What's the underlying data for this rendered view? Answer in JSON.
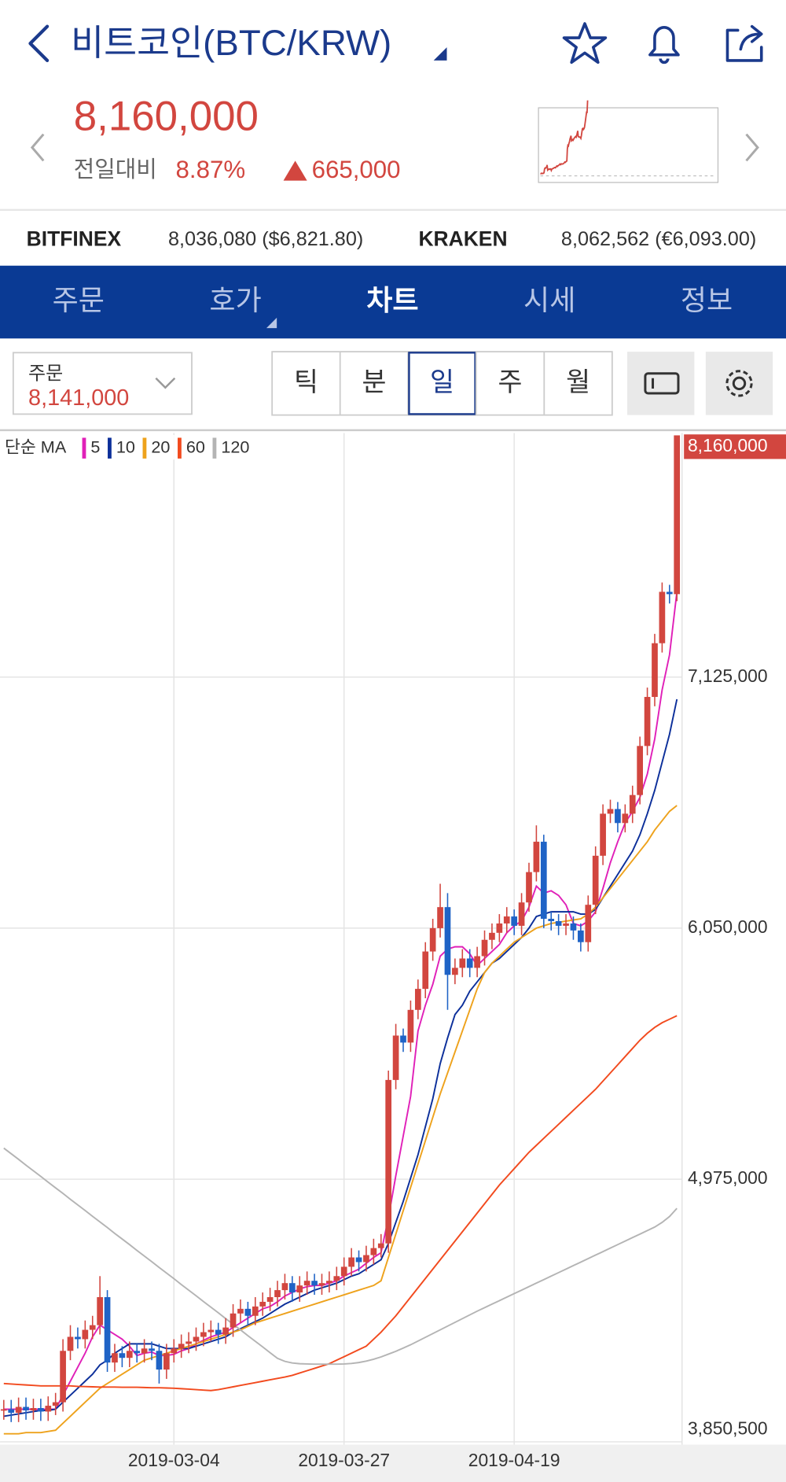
{
  "header": {
    "title": "비트코인(BTC/KRW)",
    "price": "8,160,000",
    "change_label": "전일대비",
    "change_rate": "8.87%",
    "change_amount": "665,000"
  },
  "exchanges": [
    {
      "name": "BITFINEX",
      "quote": "8,036,080 ($6,821.80)"
    },
    {
      "name": "KRAKEN",
      "quote": "8,062,562 (€6,093.00)"
    }
  ],
  "tabs": [
    "주문",
    "호가",
    "차트",
    "시세",
    "정보"
  ],
  "active_tab": 2,
  "order": {
    "label": "주문",
    "price": "8,141,000"
  },
  "periods": [
    "틱",
    "분",
    "일",
    "주",
    "월"
  ],
  "active_period": 2,
  "chart_data": {
    "type": "candlestick",
    "categories": [
      null,
      null,
      null,
      null,
      null,
      null,
      null,
      null,
      null,
      null,
      null,
      null,
      null,
      null,
      null,
      null,
      null,
      null,
      null,
      null,
      null,
      null,
      null,
      "2019-03-04",
      null,
      null,
      null,
      null,
      null,
      null,
      null,
      null,
      null,
      null,
      null,
      null,
      null,
      null,
      null,
      null,
      null,
      null,
      null,
      null,
      null,
      null,
      "2019-03-27",
      null,
      null,
      null,
      null,
      null,
      null,
      null,
      null,
      null,
      null,
      null,
      null,
      null,
      null,
      null,
      null,
      null,
      null,
      null,
      null,
      null,
      null,
      "2019-04-19",
      null,
      null,
      null,
      null,
      null,
      null,
      null,
      null,
      null,
      null,
      null,
      null,
      null,
      null,
      null,
      null,
      null,
      null,
      null,
      null,
      null,
      null
    ],
    "open": [
      3985000,
      3990000,
      3975000,
      4000000,
      3985000,
      3995000,
      3980000,
      4005000,
      4020000,
      4240000,
      4300000,
      4290000,
      4330000,
      4350000,
      4470000,
      4190000,
      4230000,
      4210000,
      4240000,
      4230000,
      4250000,
      4240000,
      4160000,
      4230000,
      4250000,
      4270000,
      4280000,
      4300000,
      4320000,
      4330000,
      4310000,
      4340000,
      4400000,
      4420000,
      4390000,
      4430000,
      4450000,
      4470000,
      4500000,
      4530000,
      4490000,
      4520000,
      4540000,
      4520000,
      4530000,
      4540000,
      4560000,
      4600000,
      4640000,
      4620000,
      4650000,
      4680000,
      4700000,
      5400000,
      5590000,
      5560000,
      5700000,
      5790000,
      5950000,
      6050000,
      6140000,
      5850000,
      5880000,
      5920000,
      5880000,
      5930000,
      6000000,
      6030000,
      6070000,
      6100000,
      6060000,
      6160000,
      6290000,
      6420000,
      6090000,
      6080000,
      6060000,
      6070000,
      6040000,
      5990000,
      6150000,
      6360000,
      6540000,
      6560000,
      6500000,
      6540000,
      6620000,
      6830000,
      7040000,
      7270000,
      7490000,
      7480000
    ],
    "high": [
      4030000,
      4030000,
      4040000,
      4040000,
      4035000,
      4035000,
      4045000,
      4060000,
      4290000,
      4350000,
      4340000,
      4370000,
      4390000,
      4560000,
      4500000,
      4270000,
      4260000,
      4280000,
      4270000,
      4290000,
      4280000,
      4270000,
      4270000,
      4290000,
      4310000,
      4320000,
      4340000,
      4360000,
      4370000,
      4360000,
      4380000,
      4440000,
      4460000,
      4450000,
      4470000,
      4490000,
      4510000,
      4540000,
      4570000,
      4560000,
      4560000,
      4580000,
      4570000,
      4570000,
      4580000,
      4600000,
      4640000,
      4680000,
      4670000,
      4690000,
      4720000,
      4740000,
      5440000,
      5640000,
      5620000,
      5740000,
      5830000,
      5990000,
      6090000,
      6240000,
      6200000,
      5920000,
      5960000,
      5960000,
      5970000,
      6040000,
      6070000,
      6110000,
      6140000,
      6130000,
      6200000,
      6330000,
      6490000,
      6450000,
      6120000,
      6110000,
      6110000,
      6100000,
      6070000,
      6190000,
      6400000,
      6580000,
      6600000,
      6590000,
      6580000,
      6660000,
      6870000,
      7080000,
      7310000,
      7530000,
      7520000,
      8160000
    ],
    "low": [
      3945000,
      3935000,
      3935000,
      3945000,
      3945000,
      3940000,
      3940000,
      3965000,
      3980000,
      4200000,
      4250000,
      4250000,
      4290000,
      4310000,
      4150000,
      4150000,
      4170000,
      4170000,
      4190000,
      4190000,
      4200000,
      4100000,
      4120000,
      4190000,
      4210000,
      4230000,
      4240000,
      4260000,
      4280000,
      4270000,
      4270000,
      4300000,
      4360000,
      4350000,
      4350000,
      4390000,
      4410000,
      4430000,
      4460000,
      4450000,
      4450000,
      4480000,
      4480000,
      4480000,
      4490000,
      4500000,
      4520000,
      4560000,
      4580000,
      4580000,
      4610000,
      4640000,
      4660000,
      5360000,
      5520000,
      5520000,
      5660000,
      5750000,
      5910000,
      6010000,
      5700000,
      5810000,
      5840000,
      5840000,
      5840000,
      5890000,
      5960000,
      5990000,
      6030000,
      6020000,
      6020000,
      6120000,
      6250000,
      6050000,
      6040000,
      6020000,
      6020000,
      6000000,
      5950000,
      5950000,
      6110000,
      6320000,
      6500000,
      6460000,
      6460000,
      6500000,
      6580000,
      6790000,
      7000000,
      7230000,
      7440000,
      7450000
    ],
    "close": [
      3990000,
      3975000,
      4000000,
      3985000,
      3995000,
      3980000,
      4005000,
      4020000,
      4240000,
      4300000,
      4290000,
      4330000,
      4350000,
      4470000,
      4190000,
      4230000,
      4210000,
      4240000,
      4230000,
      4250000,
      4240000,
      4160000,
      4230000,
      4250000,
      4270000,
      4280000,
      4300000,
      4320000,
      4330000,
      4310000,
      4340000,
      4400000,
      4420000,
      4390000,
      4430000,
      4450000,
      4470000,
      4500000,
      4530000,
      4490000,
      4520000,
      4540000,
      4520000,
      4530000,
      4540000,
      4560000,
      4600000,
      4640000,
      4620000,
      4650000,
      4680000,
      4700000,
      5400000,
      5590000,
      5560000,
      5700000,
      5790000,
      5950000,
      6050000,
      6140000,
      5850000,
      5880000,
      5920000,
      5880000,
      5930000,
      6000000,
      6030000,
      6070000,
      6100000,
      6060000,
      6160000,
      6290000,
      6420000,
      6090000,
      6080000,
      6060000,
      6070000,
      6040000,
      5990000,
      6150000,
      6360000,
      6540000,
      6560000,
      6500000,
      6540000,
      6620000,
      6830000,
      7040000,
      7270000,
      7490000,
      7480000,
      8160000
    ],
    "up_color": "#d2463f",
    "down_color": "#1f63c6",
    "ma_label": "단순 MA",
    "series": [
      {
        "name": "5",
        "color": "#e020b8",
        "values": [
          3990000,
          3990000,
          3990000,
          3990000,
          3990000,
          3990000,
          3990000,
          3990000,
          4050000,
          4110000,
          4170000,
          4230000,
          4300000,
          4350000,
          4330000,
          4310000,
          4290000,
          4260000,
          4220000,
          4230000,
          4235000,
          4220000,
          4220000,
          4225000,
          4240000,
          4250000,
          4270000,
          4285000,
          4300000,
          4310000,
          4320000,
          4340000,
          4360000,
          4380000,
          4400000,
          4420000,
          4430000,
          4450000,
          4475000,
          4490000,
          4505000,
          4515000,
          4520000,
          4520000,
          4530000,
          4540000,
          4560000,
          4575000,
          4590000,
          4615000,
          4640000,
          4660000,
          4810000,
          4990000,
          5160000,
          5330000,
          5610000,
          5720000,
          5810000,
          5930000,
          5960000,
          5970000,
          5970000,
          5940000,
          5890000,
          5920000,
          5950000,
          5980000,
          6030000,
          6060000,
          6080000,
          6140000,
          6230000,
          6200000,
          6210000,
          6190000,
          6150000,
          6070000,
          6060000,
          6080000,
          6120000,
          6220000,
          6330000,
          6420000,
          6500000,
          6550000,
          6610000,
          6710000,
          6860000,
          7070000,
          7220000,
          7490000
        ]
      },
      {
        "name": "10",
        "color": "#0c2f9a",
        "values": [
          3960000,
          3965000,
          3970000,
          3975000,
          3980000,
          3985000,
          3985000,
          3990000,
          4020000,
          4050000,
          4080000,
          4110000,
          4140000,
          4180000,
          4200000,
          4230000,
          4250000,
          4270000,
          4270000,
          4270000,
          4270000,
          4260000,
          4250000,
          4250000,
          4250000,
          4250000,
          4260000,
          4270000,
          4280000,
          4290000,
          4300000,
          4320000,
          4335000,
          4350000,
          4365000,
          4380000,
          4400000,
          4420000,
          4440000,
          4455000,
          4470000,
          4485000,
          4500000,
          4510000,
          4520000,
          4530000,
          4545000,
          4560000,
          4570000,
          4590000,
          4610000,
          4630000,
          4700000,
          4790000,
          4880000,
          4980000,
          5080000,
          5200000,
          5320000,
          5470000,
          5580000,
          5680000,
          5720000,
          5780000,
          5820000,
          5860000,
          5900000,
          5920000,
          5950000,
          5980000,
          6010000,
          6050000,
          6100000,
          6110000,
          6120000,
          6120000,
          6120000,
          6120000,
          6110000,
          6110000,
          6130000,
          6180000,
          6230000,
          6280000,
          6330000,
          6380000,
          6450000,
          6540000,
          6640000,
          6760000,
          6880000,
          7030000
        ]
      },
      {
        "name": "20",
        "color": "#eea21c",
        "values": [
          3885000,
          3885000,
          3885000,
          3890000,
          3890000,
          3890000,
          3895000,
          3900000,
          3930000,
          3960000,
          3990000,
          4020000,
          4050000,
          4080000,
          4100000,
          4120000,
          4140000,
          4160000,
          4180000,
          4200000,
          4210000,
          4220000,
          4230000,
          4240000,
          4250000,
          4260000,
          4270000,
          4280000,
          4290000,
          4300000,
          4310000,
          4320000,
          4330000,
          4345000,
          4360000,
          4370000,
          4380000,
          4390000,
          4400000,
          4410000,
          4420000,
          4430000,
          4440000,
          4450000,
          4460000,
          4470000,
          4480000,
          4490000,
          4500000,
          4510000,
          4520000,
          4540000,
          4640000,
          4740000,
          4840000,
          4940000,
          5040000,
          5140000,
          5240000,
          5340000,
          5430000,
          5520000,
          5610000,
          5700000,
          5790000,
          5860000,
          5900000,
          5930000,
          5960000,
          5990000,
          6010000,
          6030000,
          6050000,
          6060000,
          6070000,
          6075000,
          6080000,
          6085000,
          6090000,
          6110000,
          6140000,
          6180000,
          6220000,
          6260000,
          6300000,
          6340000,
          6380000,
          6420000,
          6470000,
          6510000,
          6550000,
          6575000
        ]
      },
      {
        "name": "60",
        "color": "#f24a1e",
        "values": [
          4100000,
          4098000,
          4096000,
          4094000,
          4092000,
          4090000,
          4090000,
          4090000,
          4090000,
          4090000,
          4088000,
          4087000,
          4086000,
          4085000,
          4085000,
          4085000,
          4084000,
          4084000,
          4084000,
          4083000,
          4082000,
          4082000,
          4081000,
          4080000,
          4078000,
          4076000,
          4074000,
          4072000,
          4070000,
          4074000,
          4080000,
          4086000,
          4092000,
          4098000,
          4104000,
          4110000,
          4116000,
          4122000,
          4128000,
          4135000,
          4145000,
          4155000,
          4165000,
          4175000,
          4185000,
          4200000,
          4215000,
          4230000,
          4245000,
          4260000,
          4290000,
          4320000,
          4355000,
          4390000,
          4430000,
          4470000,
          4510000,
          4550000,
          4590000,
          4630000,
          4670000,
          4710000,
          4750000,
          4790000,
          4830000,
          4870000,
          4910000,
          4950000,
          4985000,
          5020000,
          5055000,
          5090000,
          5120000,
          5150000,
          5180000,
          5210000,
          5240000,
          5270000,
          5300000,
          5330000,
          5360000,
          5395000,
          5430000,
          5465000,
          5500000,
          5535000,
          5570000,
          5600000,
          5625000,
          5645000,
          5660000,
          5675000
        ]
      },
      {
        "name": "120",
        "color": "#b4b4b4",
        "values": [
          5108000,
          5084000,
          5060000,
          5035000,
          5011000,
          4987000,
          4962000,
          4938000,
          4914000,
          4889000,
          4865000,
          4841000,
          4816000,
          4792000,
          4768000,
          4743000,
          4719000,
          4695000,
          4670000,
          4646000,
          4622000,
          4597000,
          4573000,
          4549000,
          4524000,
          4500000,
          4476000,
          4451000,
          4427000,
          4403000,
          4378000,
          4354000,
          4330000,
          4305000,
          4281000,
          4257000,
          4232000,
          4208000,
          4195000,
          4188000,
          4185000,
          4184000,
          4183000,
          4183000,
          4183000,
          4183000,
          4184000,
          4186000,
          4190000,
          4196000,
          4204000,
          4214000,
          4226000,
          4238000,
          4252000,
          4266000,
          4282000,
          4298000,
          4314000,
          4330000,
          4346000,
          4362000,
          4378000,
          4394000,
          4410000,
          4425000,
          4440000,
          4455000,
          4470000,
          4485000,
          4500000,
          4515000,
          4530000,
          4545000,
          4560000,
          4575000,
          4590000,
          4605000,
          4620000,
          4635000,
          4650000,
          4665000,
          4680000,
          4695000,
          4710000,
          4725000,
          4740000,
          4755000,
          4770000,
          4790000,
          4815000,
          4850000
        ]
      }
    ],
    "ylim": [
      3850500,
      8170000
    ],
    "yticks": [
      {
        "value": 3850500,
        "label": "3,850,500"
      },
      {
        "value": 4975000,
        "label": "4,975,000"
      },
      {
        "value": 6050000,
        "label": "6,050,000"
      },
      {
        "value": 7125000,
        "label": "7,125,000"
      }
    ],
    "current": {
      "value": 8160000,
      "label": "8,160,000"
    },
    "grid": true
  }
}
